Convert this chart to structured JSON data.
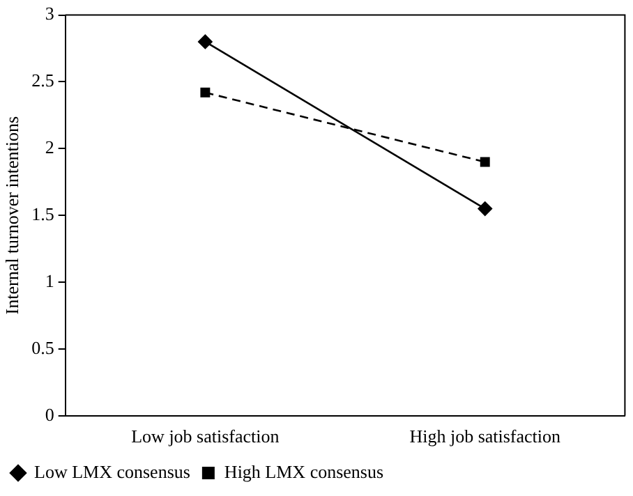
{
  "chart_data": {
    "type": "line",
    "ylabel": "Internal turnover intentions",
    "categories": [
      "Low job satisfaction",
      "High job satisfaction"
    ],
    "series": [
      {
        "name": "Low LMX consensus",
        "color": "#000000",
        "values": [
          2.8,
          1.55
        ],
        "marker": "diamond",
        "line_style": "solid"
      },
      {
        "name": "High LMX consensus",
        "color": "#000000",
        "values": [
          2.42,
          1.9
        ],
        "marker": "square",
        "line_style": "dashed"
      }
    ],
    "ylim": [
      0,
      3
    ],
    "yticks": [
      0,
      0.5,
      1,
      1.5,
      2,
      2.5,
      3
    ],
    "grid": false,
    "legend": "bottom left"
  }
}
